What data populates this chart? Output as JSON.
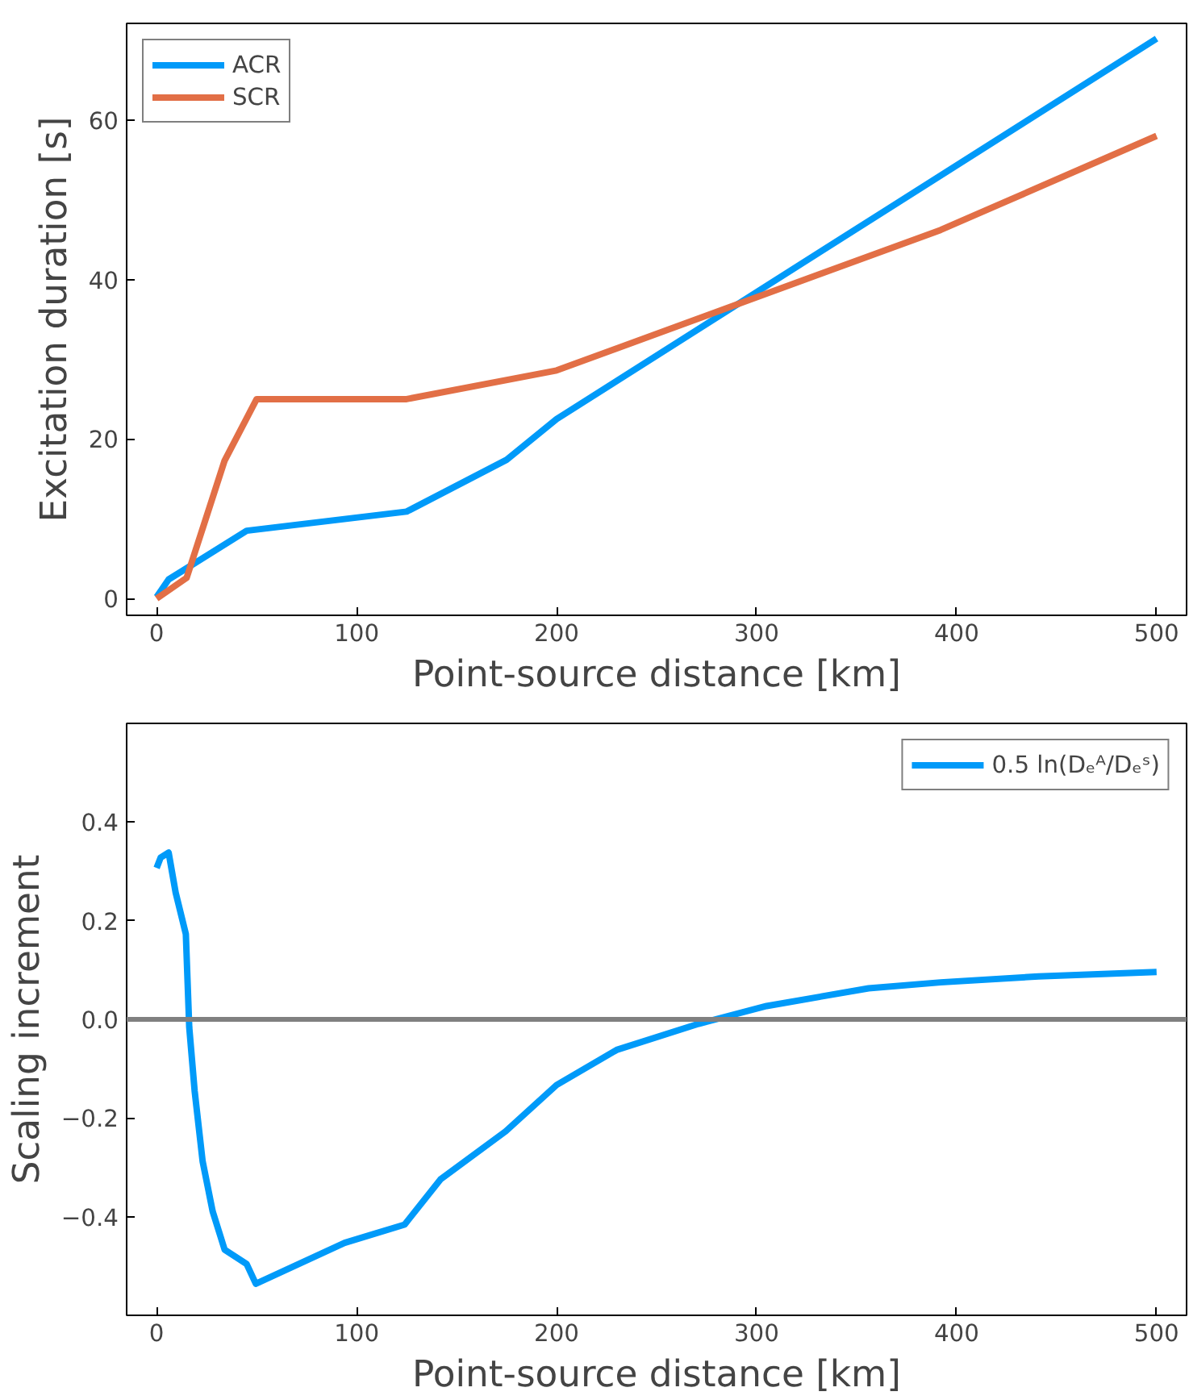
{
  "chart_data": [
    {
      "type": "line",
      "xlabel": "Point-source distance [km]",
      "ylabel": "Excitation duration [s]",
      "xlim": [
        -15,
        515
      ],
      "ylim": [
        -2.1,
        72.1
      ],
      "xticks": [
        0,
        100,
        200,
        300,
        400,
        500
      ],
      "yticks": [
        0,
        20,
        40,
        60
      ],
      "grid": false,
      "legend": "top left",
      "series": [
        {
          "name": "ACR",
          "color": "#009af9",
          "x": [
            0,
            6,
            45,
            125,
            175,
            200,
            500
          ],
          "values": [
            0.2,
            2.4,
            8.5,
            10.9,
            17.4,
            22.5,
            70.2
          ]
        },
        {
          "name": "SCR",
          "color": "#e26f46",
          "x": [
            0,
            15,
            34,
            50,
            125,
            200,
            392,
            500
          ],
          "values": [
            0,
            2.6,
            17.3,
            25,
            25,
            28.6,
            46.2,
            58
          ]
        }
      ]
    },
    {
      "type": "line",
      "xlabel": "Point-source distance [km]",
      "ylabel": "Scaling increment",
      "xlim": [
        -15,
        515
      ],
      "ylim": [
        -0.6,
        0.6
      ],
      "xticks": [
        0,
        100,
        200,
        300,
        400,
        500
      ],
      "yticks": [
        -0.4,
        -0.2,
        {
          "value": 0,
          "label": "0.0"
        },
        0.2,
        0.4
      ],
      "grid": false,
      "legend": "top right",
      "ref_lines": [
        {
          "axis": "y",
          "value": 0,
          "color": "#808080"
        }
      ],
      "series": [
        {
          "name": "0.5 ln(Dₑᴬ/Dₑˢ)",
          "color": "#009af9",
          "x": [
            0,
            2,
            6,
            9.5,
            14.6,
            16.3,
            19,
            23,
            28,
            34,
            45,
            49.6,
            94,
            124,
            142,
            174.5,
            200,
            230,
            271,
            305,
            356,
            392,
            441,
            500
          ],
          "values": [
            0.307,
            0.328,
            0.338,
            0.257,
            0.173,
            -0.016,
            -0.145,
            -0.288,
            -0.389,
            -0.467,
            -0.496,
            -0.536,
            -0.453,
            -0.416,
            -0.324,
            -0.227,
            -0.133,
            -0.062,
            -0.009,
            0.027,
            0.063,
            0.075,
            0.087,
            0.096
          ]
        }
      ]
    }
  ]
}
